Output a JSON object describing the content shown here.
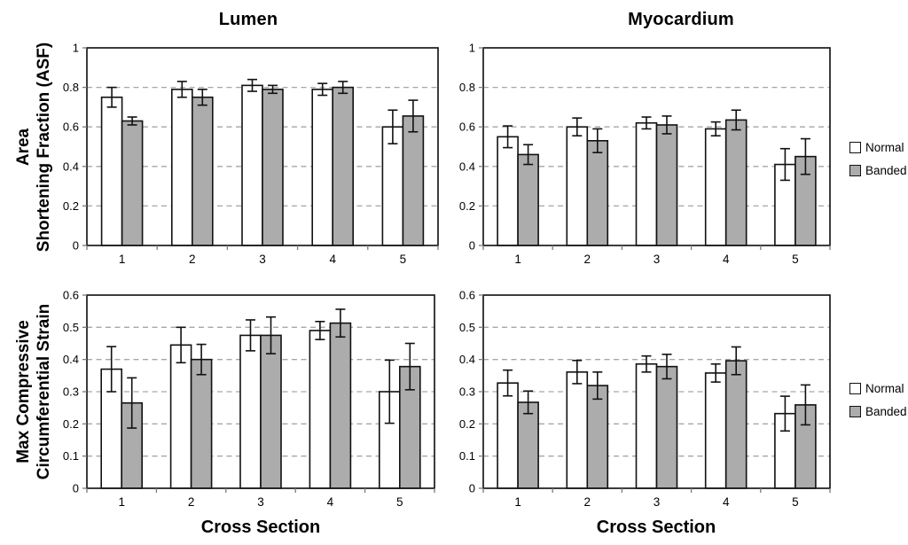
{
  "figure": {
    "background": "#FFFFFF"
  },
  "colors": {
    "normal_fill": "#FFFFFF",
    "banded_fill": "#ACACAC",
    "bar_border": "#111111",
    "gridline": "#A6A6A6",
    "axis": "#1A1A1A",
    "tick": "#7A7A7A"
  },
  "legend": {
    "position": "right",
    "items": [
      {
        "label": "Normal",
        "fill": "#FFFFFF"
      },
      {
        "label": "Banded",
        "fill": "#ACACAC"
      }
    ]
  },
  "chart_data": [
    {
      "id": "lumen-asf",
      "type": "bar",
      "title": "Lumen",
      "ylabel_lines": [
        "Area",
        "Shortening Fraction (ASF)"
      ],
      "xlabel": "",
      "categories": [
        "1",
        "2",
        "3",
        "4",
        "5"
      ],
      "ylim": [
        0,
        1
      ],
      "ytick_labels": [
        "0",
        "0.2",
        "0.4",
        "0.6",
        "0.8",
        "1"
      ],
      "grid": "dashed-horizontal",
      "series": [
        {
          "name": "Normal",
          "fill": "#FFFFFF",
          "values": [
            0.75,
            0.79,
            0.81,
            0.79,
            0.6
          ],
          "errors": [
            0.05,
            0.04,
            0.03,
            0.03,
            0.085
          ]
        },
        {
          "name": "Banded",
          "fill": "#ACACAC",
          "values": [
            0.63,
            0.75,
            0.79,
            0.8,
            0.655
          ],
          "errors": [
            0.02,
            0.04,
            0.02,
            0.03,
            0.08
          ]
        }
      ]
    },
    {
      "id": "myocardium-asf",
      "type": "bar",
      "title": "Myocardium",
      "ylabel_lines": [],
      "xlabel": "",
      "categories": [
        "1",
        "2",
        "3",
        "4",
        "5"
      ],
      "ylim": [
        0,
        1
      ],
      "ytick_labels": [
        "0",
        "0.2",
        "0.4",
        "0.6",
        "0.8",
        "1"
      ],
      "grid": "dashed-horizontal",
      "series": [
        {
          "name": "Normal",
          "fill": "#FFFFFF",
          "values": [
            0.55,
            0.6,
            0.62,
            0.59,
            0.41
          ],
          "errors": [
            0.055,
            0.045,
            0.03,
            0.035,
            0.08
          ]
        },
        {
          "name": "Banded",
          "fill": "#ACACAC",
          "values": [
            0.46,
            0.53,
            0.61,
            0.635,
            0.45
          ],
          "errors": [
            0.05,
            0.06,
            0.045,
            0.05,
            0.09
          ]
        }
      ]
    },
    {
      "id": "lumen-strain",
      "type": "bar",
      "title": "",
      "ylabel_lines": [
        "Max Compressive",
        "Circumferential Strain"
      ],
      "xlabel": "Cross Section",
      "categories": [
        "1",
        "2",
        "3",
        "4",
        "5"
      ],
      "ylim": [
        0,
        0.6
      ],
      "ytick_labels": [
        "0",
        "0.1",
        "0.2",
        "0.3",
        "0.4",
        "0.5",
        "0.6"
      ],
      "grid": "dashed-horizontal",
      "series": [
        {
          "name": "Normal",
          "fill": "#FFFFFF",
          "values": [
            0.37,
            0.445,
            0.475,
            0.49,
            0.3
          ],
          "errors": [
            0.07,
            0.055,
            0.048,
            0.028,
            0.098
          ]
        },
        {
          "name": "Banded",
          "fill": "#ACACAC",
          "values": [
            0.265,
            0.4,
            0.475,
            0.513,
            0.378
          ],
          "errors": [
            0.078,
            0.047,
            0.057,
            0.043,
            0.072
          ]
        }
      ]
    },
    {
      "id": "myocardium-strain",
      "type": "bar",
      "title": "",
      "ylabel_lines": [],
      "xlabel": "Cross Section",
      "categories": [
        "1",
        "2",
        "3",
        "4",
        "5"
      ],
      "ylim": [
        0,
        0.6
      ],
      "ytick_labels": [
        "0",
        "0.1",
        "0.2",
        "0.3",
        "0.4",
        "0.5",
        "0.6"
      ],
      "grid": "dashed-horizontal",
      "series": [
        {
          "name": "Normal",
          "fill": "#FFFFFF",
          "values": [
            0.327,
            0.361,
            0.386,
            0.358,
            0.232
          ],
          "errors": [
            0.04,
            0.036,
            0.025,
            0.028,
            0.054
          ]
        },
        {
          "name": "Banded",
          "fill": "#ACACAC",
          "values": [
            0.267,
            0.319,
            0.378,
            0.396,
            0.259
          ],
          "errors": [
            0.035,
            0.042,
            0.038,
            0.043,
            0.062
          ]
        }
      ]
    }
  ]
}
